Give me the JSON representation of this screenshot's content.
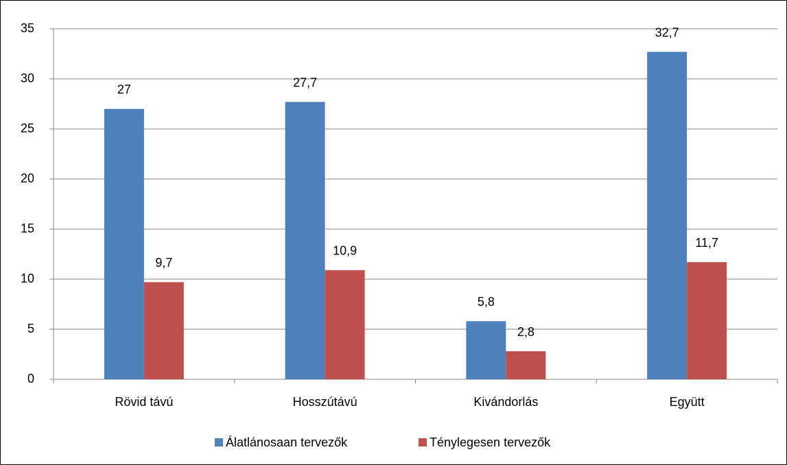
{
  "chart_data": {
    "type": "bar",
    "categories": [
      "Rövid távú",
      "Hosszútávú",
      "Kivándorlás",
      "Együtt"
    ],
    "series": [
      {
        "name": "Álatlánosaan tervezők",
        "color": "#4f81bd",
        "values": [
          27,
          27.7,
          5.8,
          32.7
        ],
        "value_labels": [
          "27",
          "27,7",
          "5,8",
          "32,7"
        ]
      },
      {
        "name": "Ténylegesen tervezők",
        "color": "#c0504d",
        "values": [
          9.7,
          10.9,
          2.8,
          11.7
        ],
        "value_labels": [
          "9,7",
          "10,9",
          "2,8",
          "11,7"
        ]
      }
    ],
    "ylim": [
      0,
      35
    ],
    "yticks": [
      0,
      5,
      10,
      15,
      20,
      25,
      30,
      35
    ],
    "grid": true,
    "legend": "bottom"
  }
}
